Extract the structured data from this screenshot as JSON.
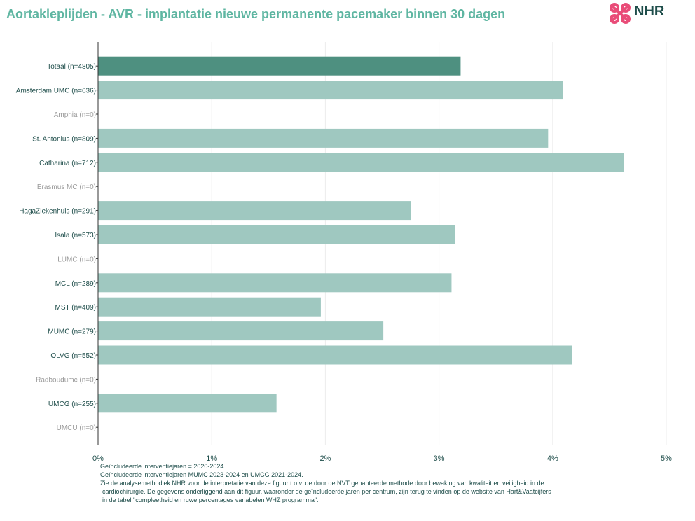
{
  "header": {
    "title": "Aortakleplijden - AVR - implantatie nieuwe permanente pacemaker binnen 30 dagen",
    "logo_text": "NHR"
  },
  "colors": {
    "total_bar": "#4e9080",
    "center_bar": "#9fc8c0",
    "label_active": "#1e4d4a",
    "label_inactive": "#9a9a9a",
    "grid": "#ececec",
    "axis": "#333333"
  },
  "chart_data": {
    "type": "bar",
    "orientation": "horizontal",
    "categories": [
      "Totaal (n=4805)",
      "Amsterdam UMC (n=636)",
      "Amphia (n=0)",
      "St. Antonius (n=809)",
      "Catharina (n=712)",
      "Erasmus MC (n=0)",
      "HagaZiekenhuis (n=291)",
      "Isala (n=573)",
      "LUMC (n=0)",
      "MCL (n=289)",
      "MST (n=409)",
      "MUMC (n=279)",
      "OLVG (n=552)",
      "Radboudumc (n=0)",
      "UMCG (n=255)",
      "UMCU (n=0)"
    ],
    "values": [
      3.19,
      4.09,
      null,
      3.96,
      4.63,
      null,
      2.75,
      3.14,
      null,
      3.11,
      1.96,
      2.51,
      4.17,
      null,
      1.57,
      null
    ],
    "xlim": [
      0,
      5
    ],
    "x_ticks": [
      "0%",
      "1%",
      "2%",
      "3%",
      "4%",
      "5%"
    ],
    "xlabel": "",
    "ylabel": "",
    "grid": true,
    "legend": "none"
  },
  "footnotes": [
    "Geïncludeerde interventiejaren = 2020-2024.",
    "Geïncludeerde interventiejaren MUMC 2023-2024 en UMCG 2021-2024.",
    "Zie de analysemethodiek NHR voor de interpretatie van deze figuur t.o.v. de door de NVT gehanteerde methode door bewaking van kwaliteit en veiligheid in de",
    "cardiochirurgie. De gegevens onderliggend aan dit figuur, waaronder de geïncludeerde jaren per centrum, zijn terug te vinden op de website van Hart&Vaatcijfers",
    "in de tabel \"compleetheid en ruwe percentages variabelen WHZ programma\"."
  ]
}
